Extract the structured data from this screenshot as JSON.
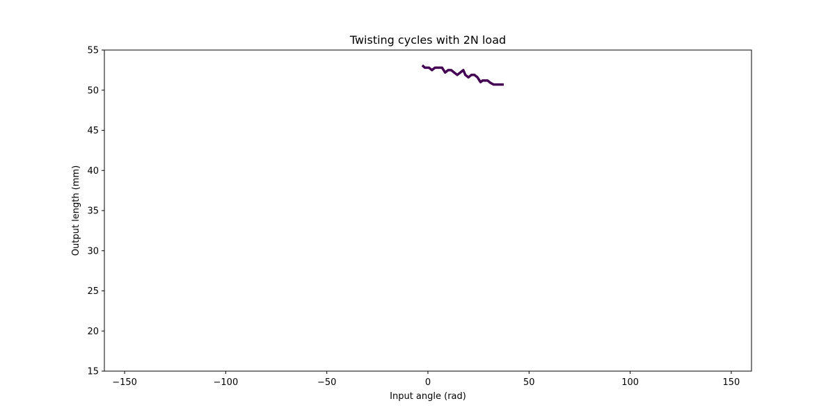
{
  "chart_data": {
    "type": "line",
    "title": "Twisting cycles with 2N load",
    "xlabel": "Input angle (rad)",
    "ylabel": "Output length (mm)",
    "xlim": [
      -160,
      160
    ],
    "ylim": [
      15,
      55
    ],
    "xticks": [
      -150,
      -100,
      -50,
      0,
      50,
      100,
      150
    ],
    "xtick_labels": [
      "−150",
      "−100",
      "−50",
      "0",
      "50",
      "100",
      "150"
    ],
    "yticks": [
      15,
      20,
      25,
      30,
      35,
      40,
      45,
      50,
      55
    ],
    "ytick_labels": [
      "15",
      "20",
      "25",
      "30",
      "35",
      "40",
      "45",
      "50",
      "55"
    ],
    "grid": false,
    "series": [
      {
        "color": "#440154",
        "x": [
          -2.8,
          -1.5,
          0.5,
          2,
          3.5,
          5,
          7,
          8.5,
          10,
          11.5,
          13,
          14.5,
          16,
          17.5,
          18.5,
          20,
          21.5,
          23,
          24.5,
          26,
          27,
          28,
          29.5,
          31,
          32.5,
          34,
          35.5,
          37.5
        ],
        "y": [
          53.1,
          52.8,
          52.8,
          52.5,
          52.8,
          52.8,
          52.8,
          52.2,
          52.5,
          52.5,
          52.2,
          51.9,
          52.2,
          52.5,
          51.9,
          51.6,
          51.9,
          51.9,
          51.6,
          51.0,
          51.2,
          51.2,
          51.2,
          50.9,
          50.7,
          50.7,
          50.7,
          50.7
        ]
      }
    ]
  }
}
